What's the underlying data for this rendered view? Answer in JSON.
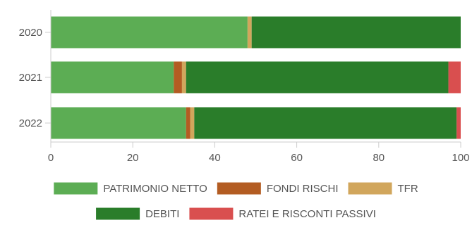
{
  "chart_data": {
    "type": "bar",
    "orientation": "horizontal",
    "stacked": true,
    "title": "",
    "xlabel": "",
    "ylabel": "",
    "categories": [
      "2020",
      "2021",
      "2022"
    ],
    "xlim": [
      0,
      100
    ],
    "xticks": [
      0,
      20,
      40,
      60,
      80,
      100
    ],
    "grid": false,
    "legend_position": "bottom",
    "series": [
      {
        "name": "PATRIMONIO NETTO",
        "color": "#5cad54",
        "values": [
          48,
          30,
          33
        ]
      },
      {
        "name": "FONDI RISCHI",
        "color": "#b35c22",
        "values": [
          0,
          2,
          1
        ]
      },
      {
        "name": "TFR",
        "color": "#d1a65c",
        "values": [
          1,
          1,
          1
        ]
      },
      {
        "name": "DEBITI",
        "color": "#2a7d2a",
        "values": [
          51,
          64,
          64
        ]
      },
      {
        "name": "RATEI E RISCONTI PASSIVI",
        "color": "#d94f4f",
        "values": [
          0,
          3,
          1
        ]
      }
    ]
  }
}
